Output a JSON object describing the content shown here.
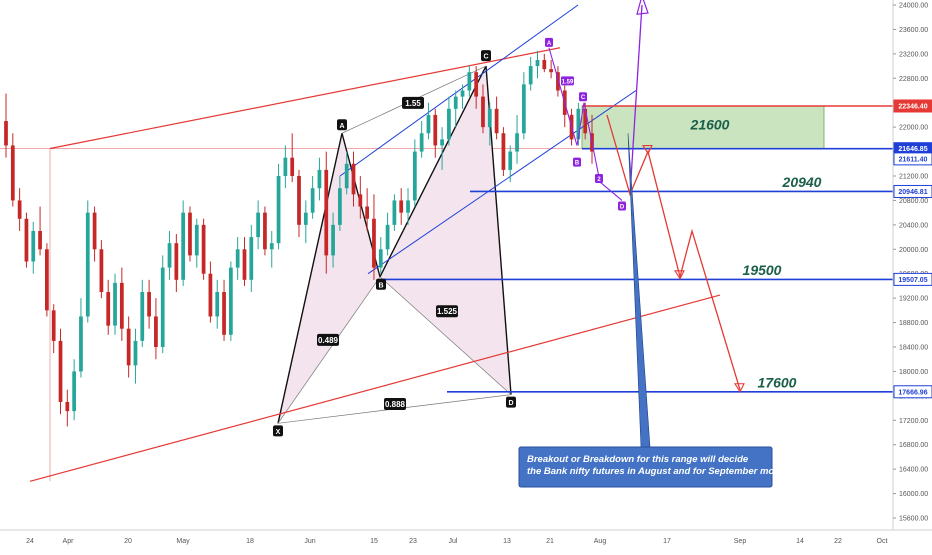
{
  "colors": {
    "bull": "#26a69a",
    "bear": "#c62828",
    "pattern_line": "#111111",
    "pattern_fill": "#f4e4ee",
    "channel_red": "#e53935",
    "channel_blue": "#1e3fd8",
    "purple": "#8e24e0",
    "zone_green": "#c9e4bf",
    "zone_border": "#6aa84f",
    "note_bg": "#4472c4",
    "axis_text": "#555555"
  },
  "chart_data": {
    "type": "candlestick",
    "y_axis": {
      "ylim": [
        15300,
        24200
      ],
      "ticks": [
        "24000.00",
        "23600.00",
        "23200.00",
        "22800.00",
        "22400.00",
        "22000.00",
        "21600.00",
        "21200.00",
        "20800.00",
        "20400.00",
        "20000.00",
        "19600.00",
        "19200.00",
        "18800.00",
        "18400.00",
        "18000.00",
        "17600.00",
        "17200.00",
        "16800.00",
        "16400.00",
        "16000.00",
        "15600.00"
      ]
    },
    "x_axis": {
      "ticks": [
        "24",
        "Apr",
        "20",
        "May",
        "18",
        "Jun",
        "15",
        "23",
        "Jul",
        "13",
        "21",
        "Aug",
        "17",
        "Sep",
        "14",
        "22",
        "Oct"
      ]
    },
    "candles": [
      {
        "o": 22100,
        "h": 22550,
        "l": 21500,
        "c": 21700
      },
      {
        "o": 21700,
        "h": 21900,
        "l": 20700,
        "c": 20800
      },
      {
        "o": 20800,
        "h": 21000,
        "l": 20300,
        "c": 20500
      },
      {
        "o": 20500,
        "h": 20600,
        "l": 19700,
        "c": 19800
      },
      {
        "o": 19800,
        "h": 20450,
        "l": 19600,
        "c": 20300
      },
      {
        "o": 20300,
        "h": 20700,
        "l": 19900,
        "c": 20000
      },
      {
        "o": 20000,
        "h": 20100,
        "l": 18900,
        "c": 19000
      },
      {
        "o": 19000,
        "h": 19100,
        "l": 18300,
        "c": 18500
      },
      {
        "o": 18500,
        "h": 18700,
        "l": 17300,
        "c": 17500
      },
      {
        "o": 17500,
        "h": 17700,
        "l": 17100,
        "c": 17350
      },
      {
        "o": 17350,
        "h": 18200,
        "l": 17200,
        "c": 18000
      },
      {
        "o": 18000,
        "h": 19200,
        "l": 17900,
        "c": 18900
      },
      {
        "o": 18900,
        "h": 20800,
        "l": 18800,
        "c": 20600
      },
      {
        "o": 20600,
        "h": 20700,
        "l": 19800,
        "c": 20000
      },
      {
        "o": 20000,
        "h": 20150,
        "l": 19200,
        "c": 19300
      },
      {
        "o": 19300,
        "h": 19500,
        "l": 18600,
        "c": 18750
      },
      {
        "o": 18750,
        "h": 19600,
        "l": 18600,
        "c": 19450
      },
      {
        "o": 19450,
        "h": 19700,
        "l": 18500,
        "c": 18700
      },
      {
        "o": 18700,
        "h": 18900,
        "l": 17900,
        "c": 18100
      },
      {
        "o": 18100,
        "h": 18700,
        "l": 17800,
        "c": 18500
      },
      {
        "o": 18500,
        "h": 19500,
        "l": 18400,
        "c": 19300
      },
      {
        "o": 19300,
        "h": 19500,
        "l": 18700,
        "c": 18900
      },
      {
        "o": 18900,
        "h": 19200,
        "l": 18200,
        "c": 18400
      },
      {
        "o": 18400,
        "h": 19900,
        "l": 18300,
        "c": 19700
      },
      {
        "o": 19700,
        "h": 20300,
        "l": 19500,
        "c": 20100
      },
      {
        "o": 20100,
        "h": 20250,
        "l": 19300,
        "c": 19500
      },
      {
        "o": 19500,
        "h": 20800,
        "l": 19400,
        "c": 20600
      },
      {
        "o": 20600,
        "h": 20700,
        "l": 19800,
        "c": 19900
      },
      {
        "o": 19900,
        "h": 20500,
        "l": 19700,
        "c": 20400
      },
      {
        "o": 20400,
        "h": 20500,
        "l": 19500,
        "c": 19600
      },
      {
        "o": 19600,
        "h": 19800,
        "l": 18800,
        "c": 18900
      },
      {
        "o": 18900,
        "h": 19500,
        "l": 18700,
        "c": 19300
      },
      {
        "o": 19300,
        "h": 19500,
        "l": 18500,
        "c": 18600
      },
      {
        "o": 18600,
        "h": 19800,
        "l": 18500,
        "c": 19700
      },
      {
        "o": 19700,
        "h": 20200,
        "l": 19500,
        "c": 20000
      },
      {
        "o": 20000,
        "h": 20200,
        "l": 19400,
        "c": 19500
      },
      {
        "o": 19500,
        "h": 20400,
        "l": 19300,
        "c": 20200
      },
      {
        "o": 20200,
        "h": 20800,
        "l": 20000,
        "c": 20600
      },
      {
        "o": 20600,
        "h": 20700,
        "l": 19900,
        "c": 20000
      },
      {
        "o": 20000,
        "h": 20300,
        "l": 19700,
        "c": 20100
      },
      {
        "o": 20100,
        "h": 21400,
        "l": 20000,
        "c": 21200
      },
      {
        "o": 21200,
        "h": 21700,
        "l": 21000,
        "c": 21500
      },
      {
        "o": 21500,
        "h": 21900,
        "l": 21100,
        "c": 21200
      },
      {
        "o": 21200,
        "h": 21300,
        "l": 20200,
        "c": 20400
      },
      {
        "o": 20400,
        "h": 20800,
        "l": 20100,
        "c": 20600
      },
      {
        "o": 20600,
        "h": 21200,
        "l": 20500,
        "c": 21000
      },
      {
        "o": 21000,
        "h": 21500,
        "l": 20800,
        "c": 21300
      },
      {
        "o": 21300,
        "h": 21600,
        "l": 19600,
        "c": 19900
      },
      {
        "o": 19900,
        "h": 20600,
        "l": 19700,
        "c": 20400
      },
      {
        "o": 20400,
        "h": 21200,
        "l": 20300,
        "c": 21000
      },
      {
        "o": 21000,
        "h": 21600,
        "l": 20900,
        "c": 21400
      },
      {
        "o": 21400,
        "h": 21600,
        "l": 20700,
        "c": 20900
      },
      {
        "o": 20900,
        "h": 21200,
        "l": 20500,
        "c": 20700
      },
      {
        "o": 20700,
        "h": 21000,
        "l": 20300,
        "c": 20500
      },
      {
        "o": 20500,
        "h": 20900,
        "l": 19500,
        "c": 19700
      },
      {
        "o": 19700,
        "h": 20200,
        "l": 19600,
        "c": 20000
      },
      {
        "o": 20000,
        "h": 20600,
        "l": 19900,
        "c": 20400
      },
      {
        "o": 20400,
        "h": 20900,
        "l": 20300,
        "c": 20800
      },
      {
        "o": 20800,
        "h": 21000,
        "l": 20400,
        "c": 20600
      },
      {
        "o": 20600,
        "h": 21000,
        "l": 20400,
        "c": 20800
      },
      {
        "o": 20800,
        "h": 21800,
        "l": 20700,
        "c": 21600
      },
      {
        "o": 21600,
        "h": 22100,
        "l": 21500,
        "c": 21900
      },
      {
        "o": 21900,
        "h": 22400,
        "l": 21800,
        "c": 22200
      },
      {
        "o": 22200,
        "h": 22300,
        "l": 21500,
        "c": 21700
      },
      {
        "o": 21700,
        "h": 22000,
        "l": 21300,
        "c": 21800
      },
      {
        "o": 21800,
        "h": 22500,
        "l": 21700,
        "c": 22300
      },
      {
        "o": 22300,
        "h": 22600,
        "l": 22000,
        "c": 22500
      },
      {
        "o": 22500,
        "h": 22700,
        "l": 22300,
        "c": 22600
      },
      {
        "o": 22600,
        "h": 23000,
        "l": 22500,
        "c": 22900
      },
      {
        "o": 22900,
        "h": 23000,
        "l": 22300,
        "c": 22500
      },
      {
        "o": 22500,
        "h": 22700,
        "l": 21900,
        "c": 22000
      },
      {
        "o": 22000,
        "h": 22400,
        "l": 21700,
        "c": 22300
      },
      {
        "o": 22300,
        "h": 22500,
        "l": 21800,
        "c": 21900
      },
      {
        "o": 21900,
        "h": 22000,
        "l": 21200,
        "c": 21300
      },
      {
        "o": 21300,
        "h": 21700,
        "l": 21100,
        "c": 21600
      },
      {
        "o": 21600,
        "h": 22200,
        "l": 21400,
        "c": 21900
      },
      {
        "o": 21900,
        "h": 22900,
        "l": 21800,
        "c": 22700
      },
      {
        "o": 22700,
        "h": 23150,
        "l": 22600,
        "c": 23000
      },
      {
        "o": 23000,
        "h": 23250,
        "l": 22800,
        "c": 23100
      },
      {
        "o": 23100,
        "h": 23200,
        "l": 22900,
        "c": 22950
      },
      {
        "o": 22950,
        "h": 23100,
        "l": 22800,
        "c": 22900
      },
      {
        "o": 22900,
        "h": 23000,
        "l": 22500,
        "c": 22600
      },
      {
        "o": 22600,
        "h": 22800,
        "l": 22000,
        "c": 22200
      },
      {
        "o": 22200,
        "h": 22300,
        "l": 21700,
        "c": 21800
      },
      {
        "o": 21800,
        "h": 22400,
        "l": 21700,
        "c": 22300
      },
      {
        "o": 22300,
        "h": 22400,
        "l": 21800,
        "c": 21900
      },
      {
        "o": 21900,
        "h": 22200,
        "l": 21400,
        "c": 21600
      }
    ],
    "price_tags": [
      {
        "value": "22346.40",
        "color": "#e53935",
        "filled": true
      },
      {
        "value": "21646.85",
        "color": "#1e3fd8",
        "filled": true
      },
      {
        "value": "21611.40",
        "color": "#1e3fd8",
        "filled": false
      },
      {
        "value": "20946.81",
        "color": "#1e3fd8",
        "filled": false
      },
      {
        "value": "19507.05",
        "color": "#1e3fd8",
        "filled": false
      },
      {
        "value": "17666.96",
        "color": "#1e3fd8",
        "filled": false
      }
    ],
    "pattern_points": [
      "X",
      "A",
      "B",
      "C",
      "D"
    ],
    "ratio_labels": [
      "1.55",
      "0.489",
      "1.525",
      "0.888"
    ],
    "mini_points": [
      "A",
      "B",
      "C",
      "D"
    ],
    "mini_ratio": "1.59",
    "mini_unlabeled": "2",
    "level_labels": [
      "21600",
      "20940",
      "19500",
      "17600"
    ],
    "annotation": "Breakout or Breakdown for this range will decide\nthe Bank nifty futures in August and for September month"
  }
}
